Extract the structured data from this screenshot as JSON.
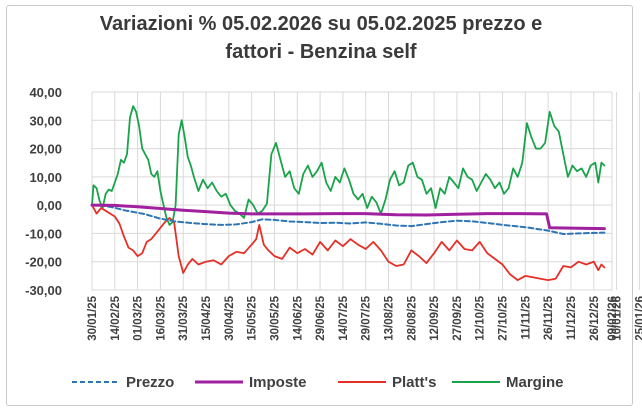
{
  "chart_data": {
    "type": "line",
    "title_line1": "Variazioni % 05.02.2026 su 05.02.2025 prezzo e",
    "title_line2": "fattori - Benzina self",
    "xlabel": "",
    "ylabel": "",
    "ylim": [
      -30,
      40
    ],
    "yticks": [
      "40,00",
      "30,00",
      "20,00",
      "10,00",
      "0,00",
      "-10,00",
      "-20,00",
      "-30,00"
    ],
    "grid": true,
    "legend_position": "bottom",
    "x_tick_labels": [
      "30/01/25",
      "14/02/25",
      "01/03/25",
      "16/03/25",
      "31/03/25",
      "15/04/25",
      "30/04/25",
      "15/05/25",
      "30/05/25",
      "14/06/25",
      "29/06/25",
      "14/07/25",
      "29/07/25",
      "13/08/25",
      "28/08/25",
      "12/09/25",
      "27/09/25",
      "12/10/25",
      "27/10/25",
      "11/11/25",
      "26/11/25",
      "11/12/25",
      "26/12/25",
      "10/01/26",
      "25/01/26",
      "09/02/26"
    ],
    "x_range": [
      "30/01/25",
      "09/02/26"
    ],
    "series": [
      {
        "name": "Prezzo",
        "color": "#2e75b6",
        "style": "dashed",
        "points": [
          [
            0,
            0.0
          ],
          [
            7,
            -0.2
          ],
          [
            14,
            -0.8
          ],
          [
            21,
            -1.8
          ],
          [
            28,
            -2.5
          ],
          [
            35,
            -3.2
          ],
          [
            45,
            -4.8
          ],
          [
            55,
            -5.8
          ],
          [
            65,
            -6.3
          ],
          [
            75,
            -6.7
          ],
          [
            85,
            -7.0
          ],
          [
            95,
            -6.8
          ],
          [
            105,
            -6.0
          ],
          [
            112,
            -5.0
          ],
          [
            120,
            -5.2
          ],
          [
            130,
            -5.8
          ],
          [
            140,
            -6.0
          ],
          [
            150,
            -6.3
          ],
          [
            160,
            -6.2
          ],
          [
            170,
            -6.5
          ],
          [
            180,
            -6.1
          ],
          [
            190,
            -6.6
          ],
          [
            200,
            -7.2
          ],
          [
            210,
            -7.4
          ],
          [
            220,
            -6.7
          ],
          [
            230,
            -6.0
          ],
          [
            240,
            -5.5
          ],
          [
            250,
            -5.7
          ],
          [
            260,
            -6.3
          ],
          [
            270,
            -7.0
          ],
          [
            285,
            -7.8
          ],
          [
            300,
            -9.0
          ],
          [
            310,
            -10.2
          ],
          [
            320,
            -10.0
          ],
          [
            330,
            -9.8
          ],
          [
            337,
            -9.7
          ]
        ]
      },
      {
        "name": "Imposte",
        "color": "#a020a0",
        "style": "solid",
        "points": [
          [
            0,
            0.0
          ],
          [
            15,
            -0.1
          ],
          [
            30,
            -0.6
          ],
          [
            45,
            -1.2
          ],
          [
            60,
            -1.8
          ],
          [
            75,
            -2.3
          ],
          [
            90,
            -2.8
          ],
          [
            105,
            -3.1
          ],
          [
            120,
            -3.1
          ],
          [
            140,
            -3.1
          ],
          [
            160,
            -3.0
          ],
          [
            180,
            -3.0
          ],
          [
            200,
            -3.4
          ],
          [
            220,
            -3.5
          ],
          [
            240,
            -3.2
          ],
          [
            260,
            -3.0
          ],
          [
            280,
            -3.0
          ],
          [
            299,
            -3.1
          ],
          [
            301,
            -8.0
          ],
          [
            320,
            -8.2
          ],
          [
            337,
            -8.3
          ]
        ]
      },
      {
        "name": "Platt's",
        "color": "#e53027",
        "style": "solid",
        "points": [
          [
            0,
            0.0
          ],
          [
            3,
            -3.0
          ],
          [
            6,
            -1.0
          ],
          [
            9,
            -2.0
          ],
          [
            12,
            -3.0
          ],
          [
            15,
            -4.0
          ],
          [
            18,
            -6.5
          ],
          [
            21,
            -11.0
          ],
          [
            24,
            -15.0
          ],
          [
            27,
            -16.0
          ],
          [
            30,
            -18.0
          ],
          [
            33,
            -17.0
          ],
          [
            36,
            -13.0
          ],
          [
            39,
            -12.0
          ],
          [
            42,
            -10.0
          ],
          [
            45,
            -8.0
          ],
          [
            48,
            -6.0
          ],
          [
            51,
            -4.5
          ],
          [
            54,
            -6.0
          ],
          [
            57,
            -18.0
          ],
          [
            60,
            -24.0
          ],
          [
            63,
            -21.0
          ],
          [
            66,
            -19.0
          ],
          [
            70,
            -21.0
          ],
          [
            75,
            -20.0
          ],
          [
            80,
            -19.5
          ],
          [
            85,
            -21.0
          ],
          [
            90,
            -18.0
          ],
          [
            95,
            -16.5
          ],
          [
            100,
            -17.0
          ],
          [
            105,
            -14.0
          ],
          [
            108,
            -12.0
          ],
          [
            110,
            -7.0
          ],
          [
            113,
            -14.0
          ],
          [
            116,
            -16.0
          ],
          [
            120,
            -18.0
          ],
          [
            125,
            -19.0
          ],
          [
            130,
            -15.0
          ],
          [
            135,
            -17.0
          ],
          [
            140,
            -15.5
          ],
          [
            145,
            -17.5
          ],
          [
            150,
            -13.0
          ],
          [
            155,
            -16.0
          ],
          [
            160,
            -12.5
          ],
          [
            165,
            -14.5
          ],
          [
            170,
            -12.0
          ],
          [
            175,
            -14.0
          ],
          [
            180,
            -15.5
          ],
          [
            185,
            -13.0
          ],
          [
            190,
            -16.0
          ],
          [
            195,
            -20.0
          ],
          [
            200,
            -21.5
          ],
          [
            205,
            -21.0
          ],
          [
            210,
            -16.0
          ],
          [
            215,
            -18.0
          ],
          [
            220,
            -20.5
          ],
          [
            225,
            -17.0
          ],
          [
            230,
            -13.0
          ],
          [
            235,
            -16.0
          ],
          [
            240,
            -12.5
          ],
          [
            245,
            -15.5
          ],
          [
            250,
            -16.0
          ],
          [
            255,
            -13.0
          ],
          [
            260,
            -17.0
          ],
          [
            265,
            -19.0
          ],
          [
            270,
            -21.0
          ],
          [
            275,
            -24.5
          ],
          [
            280,
            -26.5
          ],
          [
            285,
            -25.0
          ],
          [
            290,
            -25.5
          ],
          [
            295,
            -26.0
          ],
          [
            300,
            -26.5
          ],
          [
            305,
            -26.0
          ],
          [
            310,
            -21.5
          ],
          [
            315,
            -22.0
          ],
          [
            320,
            -20.0
          ],
          [
            325,
            -21.0
          ],
          [
            330,
            -20.0
          ],
          [
            333,
            -23.0
          ],
          [
            335,
            -21.0
          ],
          [
            337,
            -22.0
          ]
        ]
      },
      {
        "name": "Margine",
        "color": "#1aa34a",
        "style": "solid",
        "points": [
          [
            0,
            0.0
          ],
          [
            1,
            7.0
          ],
          [
            3,
            6.0
          ],
          [
            5,
            1.5
          ],
          [
            7,
            -1.0
          ],
          [
            9,
            4.0
          ],
          [
            11,
            5.5
          ],
          [
            13,
            5.0
          ],
          [
            15,
            8.0
          ],
          [
            17,
            11.0
          ],
          [
            19,
            16.0
          ],
          [
            21,
            15.0
          ],
          [
            23,
            18.0
          ],
          [
            25,
            31.0
          ],
          [
            27,
            35.0
          ],
          [
            29,
            33.0
          ],
          [
            31,
            28.0
          ],
          [
            33,
            20.0
          ],
          [
            35,
            18.0
          ],
          [
            37,
            16.0
          ],
          [
            39,
            11.0
          ],
          [
            41,
            10.0
          ],
          [
            43,
            12.0
          ],
          [
            45,
            5.0
          ],
          [
            47,
            0.0
          ],
          [
            49,
            -4.5
          ],
          [
            51,
            -7.0
          ],
          [
            53,
            -6.0
          ],
          [
            55,
            0.0
          ],
          [
            57,
            25.0
          ],
          [
            59,
            30.0
          ],
          [
            61,
            24.0
          ],
          [
            63,
            17.0
          ],
          [
            65,
            14.0
          ],
          [
            67,
            10.0
          ],
          [
            70,
            5.0
          ],
          [
            73,
            9.0
          ],
          [
            76,
            6.0
          ],
          [
            79,
            8.0
          ],
          [
            82,
            5.0
          ],
          [
            85,
            3.0
          ],
          [
            88,
            4.0
          ],
          [
            91,
            0.0
          ],
          [
            94,
            -2.0
          ],
          [
            97,
            -3.0
          ],
          [
            100,
            -4.5
          ],
          [
            103,
            2.0
          ],
          [
            106,
            0.0
          ],
          [
            109,
            -3.0
          ],
          [
            112,
            -2.0
          ],
          [
            115,
            0.5
          ],
          [
            118,
            18.0
          ],
          [
            121,
            22.0
          ],
          [
            124,
            16.0
          ],
          [
            127,
            10.0
          ],
          [
            130,
            12.0
          ],
          [
            133,
            6.0
          ],
          [
            136,
            4.0
          ],
          [
            139,
            11.0
          ],
          [
            142,
            14.0
          ],
          [
            145,
            10.0
          ],
          [
            148,
            12.0
          ],
          [
            151,
            15.0
          ],
          [
            154,
            8.0
          ],
          [
            157,
            5.0
          ],
          [
            160,
            10.0
          ],
          [
            163,
            8.0
          ],
          [
            166,
            13.0
          ],
          [
            169,
            9.0
          ],
          [
            172,
            4.0
          ],
          [
            175,
            2.0
          ],
          [
            178,
            4.0
          ],
          [
            181,
            -1.0
          ],
          [
            184,
            3.0
          ],
          [
            187,
            1.0
          ],
          [
            190,
            -3.0
          ],
          [
            193,
            2.0
          ],
          [
            196,
            9.0
          ],
          [
            199,
            12.0
          ],
          [
            202,
            7.0
          ],
          [
            205,
            8.0
          ],
          [
            208,
            14.0
          ],
          [
            211,
            15.0
          ],
          [
            214,
            10.0
          ],
          [
            217,
            9.0
          ],
          [
            220,
            4.0
          ],
          [
            223,
            6.0
          ],
          [
            226,
            -1.0
          ],
          [
            229,
            6.0
          ],
          [
            232,
            4.0
          ],
          [
            235,
            10.0
          ],
          [
            238,
            8.0
          ],
          [
            241,
            6.0
          ],
          [
            244,
            13.0
          ],
          [
            247,
            10.0
          ],
          [
            250,
            9.0
          ],
          [
            253,
            5.0
          ],
          [
            256,
            8.0
          ],
          [
            259,
            11.0
          ],
          [
            262,
            9.0
          ],
          [
            265,
            6.0
          ],
          [
            268,
            8.0
          ],
          [
            271,
            4.0
          ],
          [
            274,
            6.0
          ],
          [
            277,
            13.0
          ],
          [
            280,
            10.0
          ],
          [
            283,
            15.0
          ],
          [
            286,
            29.0
          ],
          [
            289,
            24.0
          ],
          [
            292,
            20.0
          ],
          [
            295,
            20.0
          ],
          [
            298,
            22.0
          ],
          [
            301,
            33.0
          ],
          [
            304,
            28.0
          ],
          [
            307,
            26.0
          ],
          [
            310,
            18.0
          ],
          [
            313,
            10.0
          ],
          [
            316,
            14.0
          ],
          [
            319,
            12.0
          ],
          [
            322,
            13.0
          ],
          [
            325,
            10.0
          ],
          [
            328,
            14.0
          ],
          [
            331,
            15.0
          ],
          [
            333,
            8.0
          ],
          [
            335,
            15.0
          ],
          [
            337,
            14.0
          ]
        ]
      }
    ]
  }
}
